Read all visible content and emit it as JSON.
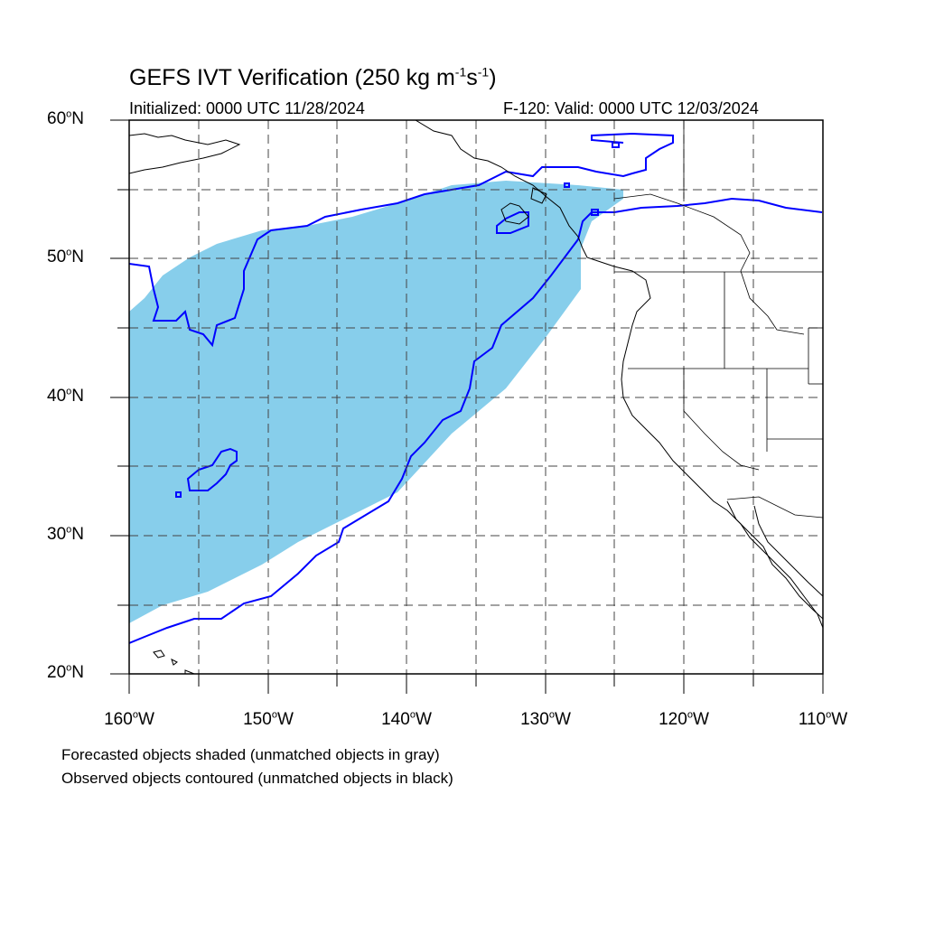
{
  "title": {
    "prefix": "GEFS IVT Verification (250 kg m",
    "exp1": "-1",
    "mid": "s",
    "exp2": "-1",
    "suffix": ")"
  },
  "subtitle_left": "Initialized: 0000 UTC 11/28/2024",
  "subtitle_right": "F-120: Valid: 0000 UTC 12/03/2024",
  "lat_labels": [
    {
      "deg": "60",
      "suffix": "N"
    },
    {
      "deg": "50",
      "suffix": "N"
    },
    {
      "deg": "40",
      "suffix": "N"
    },
    {
      "deg": "30",
      "suffix": "N"
    },
    {
      "deg": "20",
      "suffix": "N"
    }
  ],
  "lon_labels": [
    {
      "deg": "160",
      "suffix": "W"
    },
    {
      "deg": "150",
      "suffix": "W"
    },
    {
      "deg": "140",
      "suffix": "W"
    },
    {
      "deg": "130",
      "suffix": "W"
    },
    {
      "deg": "120",
      "suffix": "W"
    },
    {
      "deg": "110",
      "suffix": "W"
    }
  ],
  "notes": [
    "Forecasted objects shaded (unmatched objects in gray)",
    "Observed objects contoured (unmatched objects in black)"
  ],
  "map_extent": {
    "lon": [
      -160,
      -110
    ],
    "lat": [
      20,
      60
    ]
  },
  "colors": {
    "forecast_fill": "#87CEEB",
    "observed_contour": "#0000FF",
    "coastline": "#000000",
    "grid": "#000000"
  }
}
